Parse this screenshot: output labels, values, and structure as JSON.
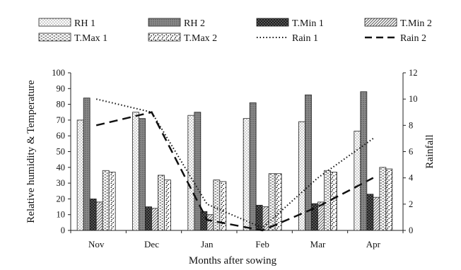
{
  "chart_data": {
    "type": "bar",
    "categories": [
      "Nov",
      "Dec",
      "Jan",
      "Feb",
      "Mar",
      "Apr"
    ],
    "xlabel": "Months after sowing",
    "ylabel": "Relative humidity & Temperature",
    "y2label": "Rainfall",
    "ylim": [
      0,
      100
    ],
    "y2lim": [
      0,
      12
    ],
    "yticks": [
      "0",
      "10",
      "20",
      "30",
      "40",
      "50",
      "60",
      "70",
      "80",
      "90",
      "100"
    ],
    "y2ticks": [
      "0",
      "2",
      "4",
      "6",
      "8",
      "10",
      "12"
    ],
    "legend_position": "top",
    "grid": false,
    "series": [
      {
        "name": "RH 1",
        "kind": "bar",
        "axis": "left",
        "pattern": "dots-light",
        "values": [
          70,
          75,
          73,
          71,
          69,
          63
        ]
      },
      {
        "name": "RH 2",
        "kind": "bar",
        "axis": "left",
        "pattern": "gray-dense",
        "values": [
          84,
          71,
          75,
          81,
          86,
          88
        ]
      },
      {
        "name": "T.Min 1",
        "kind": "bar",
        "axis": "left",
        "pattern": "crosshatch-dark",
        "values": [
          20,
          15,
          12,
          16,
          17,
          23
        ]
      },
      {
        "name": "T.Min 2",
        "kind": "bar",
        "axis": "left",
        "pattern": "diagonal",
        "values": [
          18,
          14,
          10,
          15,
          18,
          21
        ]
      },
      {
        "name": "T.Max 1",
        "kind": "bar",
        "axis": "left",
        "pattern": "dashes",
        "values": [
          38,
          35,
          32,
          36,
          38,
          40
        ]
      },
      {
        "name": "T.Max 2",
        "kind": "bar",
        "axis": "left",
        "pattern": "confetti",
        "values": [
          37,
          32,
          31,
          36,
          37,
          39
        ]
      },
      {
        "name": "Rain 1",
        "kind": "line",
        "axis": "right",
        "style": "dotted",
        "values": [
          10,
          9,
          2,
          0.2,
          4,
          7
        ]
      },
      {
        "name": "Rain 2",
        "kind": "line",
        "axis": "right",
        "style": "dashed",
        "values": [
          8,
          9,
          0.8,
          0,
          1.8,
          4
        ]
      }
    ]
  }
}
